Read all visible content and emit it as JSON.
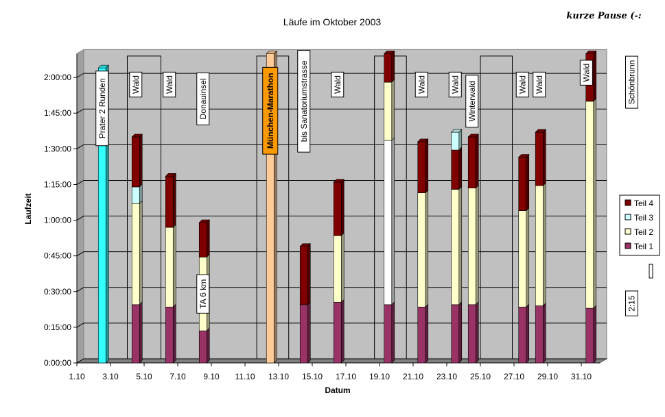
{
  "chart_data": {
    "type": "bar",
    "stacked": true,
    "title": "Läufe im Oktober 2003",
    "corner_note": "kurze Pause (-:",
    "xlabel": "Datum",
    "ylabel": "Laufzeit",
    "y_unit": "minutes",
    "ylim": [
      0,
      130
    ],
    "y_ticks": [
      {
        "value": 0,
        "label": "0:00:00"
      },
      {
        "value": 15,
        "label": "0:15:00"
      },
      {
        "value": 30,
        "label": "0:30:00"
      },
      {
        "value": 45,
        "label": "0:45:00"
      },
      {
        "value": 60,
        "label": "1:00:00"
      },
      {
        "value": 75,
        "label": "1:15:00"
      },
      {
        "value": 90,
        "label": "1:30:00"
      },
      {
        "value": 105,
        "label": "1:45:00"
      },
      {
        "value": 120,
        "label": "2:00:00"
      }
    ],
    "xlim": [
      1,
      32
    ],
    "x_ticks": [
      {
        "day": 1,
        "label": "1.10"
      },
      {
        "day": 3,
        "label": "3.10"
      },
      {
        "day": 5,
        "label": "5.10"
      },
      {
        "day": 7,
        "label": "7.10"
      },
      {
        "day": 9,
        "label": "9.10"
      },
      {
        "day": 11,
        "label": "11.10"
      },
      {
        "day": 13,
        "label": "13.10"
      },
      {
        "day": 15,
        "label": "15.10"
      },
      {
        "day": 17,
        "label": "17.10"
      },
      {
        "day": 19,
        "label": "19.10"
      },
      {
        "day": 21,
        "label": "21.10"
      },
      {
        "day": 23,
        "label": "23.10"
      },
      {
        "day": 25,
        "label": "25.10"
      },
      {
        "day": 27,
        "label": "27.10"
      },
      {
        "day": 29,
        "label": "29.10"
      },
      {
        "day": 31,
        "label": "31.10"
      }
    ],
    "legend": {
      "placement": "right",
      "entries": [
        {
          "name": "Teil 4",
          "color": "#800000"
        },
        {
          "name": "Teil 3",
          "color": "#ccffff"
        },
        {
          "name": "Teil 2",
          "color": "#ffffcc"
        },
        {
          "name": "Teil 1",
          "color": "#993366"
        }
      ]
    },
    "series_colors": {
      "teil1": "#993366",
      "teil2": "#ffffcc",
      "teil3": "#ccffff",
      "teil4": "#800000",
      "white": "#ffffff",
      "prater": "#33ffff",
      "marathon": "#ffcc99"
    },
    "runs": [
      {
        "day": 2.5,
        "segments": [
          {
            "s": "prater",
            "v": 124
          }
        ]
      },
      {
        "day": 4.5,
        "segments": [
          {
            "s": "teil1",
            "v": 24.5
          },
          {
            "s": "teil2",
            "v": 42.5
          },
          {
            "s": "teil3",
            "v": 7
          },
          {
            "s": "teil4",
            "v": 21
          }
        ]
      },
      {
        "day": 6.5,
        "segments": [
          {
            "s": "teil1",
            "v": 23.5
          },
          {
            "s": "teil2",
            "v": 33.5
          },
          {
            "s": "teil4",
            "v": 21.5
          }
        ]
      },
      {
        "day": 8.5,
        "segments": [
          {
            "s": "teil1",
            "v": 13.5
          },
          {
            "s": "teil2",
            "v": 31
          },
          {
            "s": "teil4",
            "v": 14.5
          }
        ]
      },
      {
        "day": 12.5,
        "segments": [
          {
            "s": "marathon",
            "v": 130
          }
        ]
      },
      {
        "day": 14.5,
        "segments": [
          {
            "s": "teil1",
            "v": 24.5
          },
          {
            "s": "teil4",
            "v": 24.5
          }
        ]
      },
      {
        "day": 16.5,
        "segments": [
          {
            "s": "teil1",
            "v": 25.5
          },
          {
            "s": "teil2",
            "v": 28
          },
          {
            "s": "teil4",
            "v": 22.5
          }
        ]
      },
      {
        "day": 19.5,
        "segments": [
          {
            "s": "teil1",
            "v": 24.5
          },
          {
            "s": "white",
            "v": 69
          },
          {
            "s": "teil2",
            "v": 24.5
          },
          {
            "s": "teil4",
            "v": 12
          }
        ]
      },
      {
        "day": 21.5,
        "segments": [
          {
            "s": "teil1",
            "v": 23.5
          },
          {
            "s": "teil2",
            "v": 48
          },
          {
            "s": "teil4",
            "v": 21.5
          }
        ]
      },
      {
        "day": 23.5,
        "segments": [
          {
            "s": "teil1",
            "v": 24.5
          },
          {
            "s": "teil2",
            "v": 48.5
          },
          {
            "s": "teil4",
            "v": 16.5
          },
          {
            "s": "teil3",
            "v": 7.5
          }
        ]
      },
      {
        "day": 24.5,
        "segments": [
          {
            "s": "teil1",
            "v": 24.5
          },
          {
            "s": "teil2",
            "v": 49
          },
          {
            "s": "teil4",
            "v": 21.5
          }
        ]
      },
      {
        "day": 27.5,
        "segments": [
          {
            "s": "teil1",
            "v": 23.5
          },
          {
            "s": "teil2",
            "v": 40.5
          },
          {
            "s": "teil4",
            "v": 22.5
          }
        ]
      },
      {
        "day": 28.5,
        "segments": [
          {
            "s": "teil1",
            "v": 24
          },
          {
            "s": "teil2",
            "v": 50.5
          },
          {
            "s": "teil4",
            "v": 22.5
          }
        ]
      },
      {
        "day": 31.5,
        "segments": [
          {
            "s": "teil1",
            "v": 23
          },
          {
            "s": "teil2",
            "v": 87
          },
          {
            "s": "teil4",
            "v": 20
          }
        ]
      }
    ],
    "outline_boxes": [
      {
        "from": 4,
        "to": 6,
        "value": 129
      },
      {
        "from": 11.7,
        "to": 13.6,
        "value": 129
      },
      {
        "from": 18.7,
        "to": 20.6,
        "value": 129
      },
      {
        "from": 25,
        "to": 26.9,
        "value": 129
      }
    ],
    "annotations": [
      {
        "text": "Prater 2 Runden",
        "day": 2.5,
        "value": 107
      },
      {
        "text": "Wald",
        "day": 4.5,
        "value": 117
      },
      {
        "text": "Wald",
        "day": 6.5,
        "value": 117
      },
      {
        "text": "Donauinsel",
        "day": 8.5,
        "value": 111
      },
      {
        "text": "TA 6 km",
        "day": 8.5,
        "value": 29,
        "style": "inbar"
      },
      {
        "text": "München-Marathon",
        "day": 12.5,
        "value": 106,
        "style": "marathon"
      },
      {
        "text": "bis Sanatoriumstrasse",
        "day": 14.5,
        "value": 110
      },
      {
        "text": "Wald",
        "day": 16.5,
        "value": 117
      },
      {
        "text": "Wald",
        "day": 21.5,
        "value": 117
      },
      {
        "text": "Wald",
        "day": 23.5,
        "value": 117
      },
      {
        "text": "Winterwald",
        "day": 24.5,
        "value": 110
      },
      {
        "text": "Wald",
        "day": 27.5,
        "value": 117
      },
      {
        "text": "Wald",
        "day": 28.5,
        "value": 117
      },
      {
        "text": "Wald",
        "day": 31.3,
        "value": 122
      },
      {
        "text": "Schönbrunn",
        "day": 34,
        "value": 118
      },
      {
        "text": "2:15",
        "day": 34,
        "value": 25
      }
    ]
  }
}
